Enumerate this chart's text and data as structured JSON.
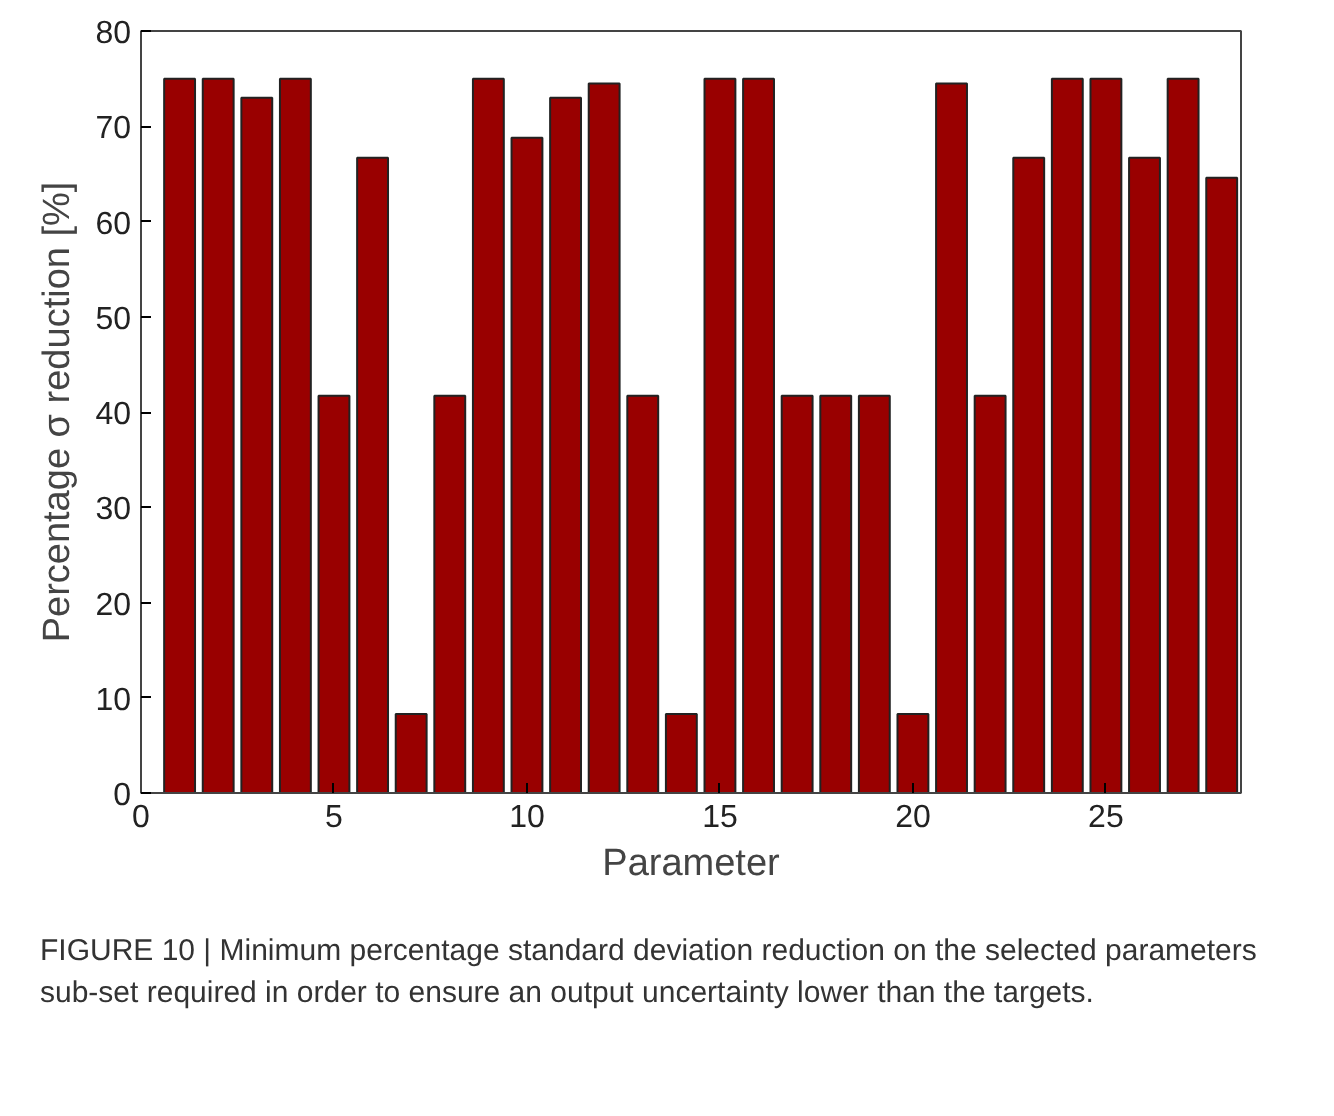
{
  "chart_data": {
    "type": "bar",
    "xlabel": "Parameter",
    "ylabel": "Percentage σ reduction [%]",
    "x": [
      1,
      2,
      3,
      4,
      5,
      6,
      7,
      8,
      9,
      10,
      11,
      12,
      13,
      14,
      15,
      16,
      17,
      18,
      19,
      20,
      21,
      22,
      23,
      24,
      25,
      26,
      27,
      28
    ],
    "values": [
      75,
      75,
      73,
      75,
      41.7,
      66.7,
      8.3,
      41.7,
      75,
      68.8,
      73,
      74.5,
      41.7,
      8.3,
      75,
      75,
      41.7,
      41.7,
      41.7,
      8.3,
      74.5,
      41.7,
      66.7,
      75,
      75,
      66.7,
      75,
      64.6
    ],
    "color": "#990000",
    "xlim": [
      0,
      28.5
    ],
    "xticks": [
      0,
      5,
      10,
      15,
      20,
      25
    ],
    "ylim": [
      0,
      80
    ],
    "yticks": [
      0,
      10,
      20,
      30,
      40,
      50,
      60,
      70,
      80
    ],
    "grid": false,
    "annotations": [
      "FIGURE 10 | Minimum percentage standard deviation reduction on the selected parameters sub-set required in order to ensure an output uncertainty lower than the targets."
    ]
  }
}
